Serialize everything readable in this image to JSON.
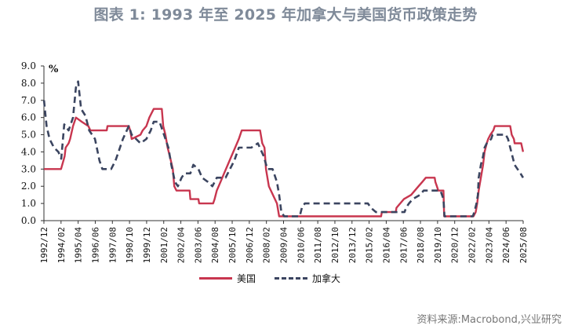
{
  "header": {
    "title": "图表 1:  1993 年至 2025 年加拿大与美国货币政策走势"
  },
  "legend": {
    "us_label": "美国",
    "ca_label": "加拿大"
  },
  "source": "资料来源:Macrobond,兴业研究",
  "colors": {
    "us": "#c8364f",
    "ca": "#3b4560",
    "axis": "#333333",
    "title": "#7f8a99"
  },
  "chart_data": {
    "type": "line",
    "title": "图表 1: 1993 年至 2025 年加拿大与美国货币政策走势",
    "xlabel": "",
    "ylabel": "%",
    "ylim": [
      0,
      9
    ],
    "yticks": [
      "0.0",
      "1.0",
      "2.0",
      "3.0",
      "4.0",
      "5.0",
      "6.0",
      "7.0",
      "8.0",
      "9.0"
    ],
    "xticks": [
      "1992/12",
      "1994/02",
      "1995/04",
      "1996/06",
      "1997/08",
      "1998/10",
      "1999/12",
      "2001/02",
      "2002/04",
      "2003/06",
      "2004/08",
      "2005/10",
      "2006/12",
      "2008/02",
      "2009/04",
      "2010/06",
      "2011/08",
      "2012/10",
      "2013/12",
      "2015/02",
      "2016/04",
      "2017/06",
      "2018/08",
      "2019/10",
      "2020/12",
      "2022/02",
      "2023/04",
      "2024/06",
      "2025/08"
    ],
    "xrange": [
      1992.917,
      2025.583
    ],
    "grid": false,
    "legend_position": "bottom",
    "series": [
      {
        "name": "美国",
        "style": "solid",
        "points": [
          [
            1992.92,
            3.0
          ],
          [
            1994.08,
            3.0
          ],
          [
            1994.25,
            3.5
          ],
          [
            1994.33,
            3.75
          ],
          [
            1994.4,
            4.25
          ],
          [
            1994.6,
            4.5
          ],
          [
            1994.7,
            4.75
          ],
          [
            1994.9,
            5.5
          ],
          [
            1995.1,
            6.0
          ],
          [
            1995.5,
            5.75
          ],
          [
            1995.95,
            5.5
          ],
          [
            1996.08,
            5.25
          ],
          [
            1997.2,
            5.25
          ],
          [
            1997.25,
            5.5
          ],
          [
            1998.7,
            5.5
          ],
          [
            1998.8,
            5.25
          ],
          [
            1998.9,
            4.75
          ],
          [
            1999.5,
            5.0
          ],
          [
            1999.65,
            5.25
          ],
          [
            1999.9,
            5.5
          ],
          [
            2000.1,
            6.0
          ],
          [
            2000.4,
            6.5
          ],
          [
            2000.95,
            6.5
          ],
          [
            2001.05,
            5.5
          ],
          [
            2001.2,
            5.0
          ],
          [
            2001.35,
            4.25
          ],
          [
            2001.5,
            3.75
          ],
          [
            2001.7,
            3.0
          ],
          [
            2001.8,
            2.0
          ],
          [
            2001.95,
            1.75
          ],
          [
            2002.85,
            1.75
          ],
          [
            2002.9,
            1.25
          ],
          [
            2003.45,
            1.25
          ],
          [
            2003.5,
            1.0
          ],
          [
            2004.45,
            1.0
          ],
          [
            2004.55,
            1.25
          ],
          [
            2004.7,
            1.75
          ],
          [
            2004.95,
            2.25
          ],
          [
            2005.2,
            2.75
          ],
          [
            2005.45,
            3.25
          ],
          [
            2005.7,
            3.75
          ],
          [
            2005.95,
            4.25
          ],
          [
            2006.2,
            4.75
          ],
          [
            2006.4,
            5.25
          ],
          [
            2007.65,
            5.25
          ],
          [
            2007.8,
            4.5
          ],
          [
            2007.95,
            4.25
          ],
          [
            2008.05,
            3.0
          ],
          [
            2008.25,
            2.0
          ],
          [
            2008.8,
            1.0
          ],
          [
            2008.95,
            0.25
          ],
          [
            2015.9,
            0.25
          ],
          [
            2015.95,
            0.5
          ],
          [
            2016.9,
            0.5
          ],
          [
            2016.95,
            0.75
          ],
          [
            2017.2,
            1.0
          ],
          [
            2017.45,
            1.25
          ],
          [
            2017.95,
            1.5
          ],
          [
            2018.2,
            1.75
          ],
          [
            2018.45,
            2.0
          ],
          [
            2018.7,
            2.25
          ],
          [
            2018.95,
            2.5
          ],
          [
            2019.55,
            2.5
          ],
          [
            2019.6,
            2.25
          ],
          [
            2019.7,
            2.0
          ],
          [
            2019.8,
            1.75
          ],
          [
            2020.15,
            1.75
          ],
          [
            2020.2,
            0.25
          ],
          [
            2022.2,
            0.25
          ],
          [
            2022.35,
            0.5
          ],
          [
            2022.45,
            1.0
          ],
          [
            2022.55,
            1.75
          ],
          [
            2022.7,
            2.5
          ],
          [
            2022.85,
            3.25
          ],
          [
            2022.95,
            4.0
          ],
          [
            2023.1,
            4.5
          ],
          [
            2023.2,
            4.75
          ],
          [
            2023.35,
            5.0
          ],
          [
            2023.55,
            5.25
          ],
          [
            2023.65,
            5.5
          ],
          [
            2024.7,
            5.5
          ],
          [
            2024.8,
            5.0
          ],
          [
            2024.95,
            4.75
          ],
          [
            2025.0,
            4.5
          ],
          [
            2025.45,
            4.5
          ],
          [
            2025.58,
            4.0
          ]
        ]
      },
      {
        "name": "加拿大",
        "style": "dashed",
        "points": [
          [
            1992.92,
            7.0
          ],
          [
            1993.1,
            5.5
          ],
          [
            1993.3,
            4.75
          ],
          [
            1993.6,
            4.25
          ],
          [
            1993.9,
            4.0
          ],
          [
            1994.1,
            3.6
          ],
          [
            1994.3,
            5.6
          ],
          [
            1994.6,
            5.25
          ],
          [
            1994.9,
            6.0
          ],
          [
            1995.1,
            7.75
          ],
          [
            1995.25,
            8.1
          ],
          [
            1995.45,
            6.5
          ],
          [
            1995.75,
            6.1
          ],
          [
            1996.0,
            5.25
          ],
          [
            1996.4,
            4.75
          ],
          [
            1996.7,
            3.5
          ],
          [
            1996.9,
            3.0
          ],
          [
            1997.5,
            3.0
          ],
          [
            1997.8,
            3.5
          ],
          [
            1998.0,
            4.0
          ],
          [
            1998.3,
            4.75
          ],
          [
            1998.7,
            5.5
          ],
          [
            1998.9,
            5.0
          ],
          [
            1999.2,
            4.75
          ],
          [
            1999.5,
            4.5
          ],
          [
            1999.9,
            4.75
          ],
          [
            2000.2,
            5.25
          ],
          [
            2000.4,
            5.75
          ],
          [
            2000.8,
            5.75
          ],
          [
            2001.1,
            5.0
          ],
          [
            2001.4,
            4.25
          ],
          [
            2001.6,
            3.25
          ],
          [
            2001.85,
            2.25
          ],
          [
            2002.05,
            2.0
          ],
          [
            2002.3,
            2.5
          ],
          [
            2002.5,
            2.75
          ],
          [
            2002.9,
            2.75
          ],
          [
            2003.1,
            3.25
          ],
          [
            2003.45,
            3.0
          ],
          [
            2003.7,
            2.5
          ],
          [
            2004.1,
            2.25
          ],
          [
            2004.4,
            2.0
          ],
          [
            2004.7,
            2.5
          ],
          [
            2005.3,
            2.5
          ],
          [
            2005.6,
            3.0
          ],
          [
            2005.9,
            3.5
          ],
          [
            2006.2,
            4.25
          ],
          [
            2007.05,
            4.25
          ],
          [
            2007.5,
            4.5
          ],
          [
            2007.9,
            3.75
          ],
          [
            2008.15,
            3.0
          ],
          [
            2008.5,
            3.0
          ],
          [
            2008.8,
            2.25
          ],
          [
            2008.95,
            1.5
          ],
          [
            2009.1,
            0.5
          ],
          [
            2009.3,
            0.25
          ],
          [
            2010.35,
            0.25
          ],
          [
            2010.5,
            0.75
          ],
          [
            2010.7,
            1.0
          ],
          [
            2015.0,
            1.0
          ],
          [
            2015.2,
            0.75
          ],
          [
            2015.55,
            0.5
          ],
          [
            2017.5,
            0.5
          ],
          [
            2017.6,
            0.75
          ],
          [
            2017.8,
            1.0
          ],
          [
            2018.05,
            1.25
          ],
          [
            2018.55,
            1.5
          ],
          [
            2018.8,
            1.75
          ],
          [
            2019.95,
            1.75
          ],
          [
            2020.15,
            1.25
          ],
          [
            2020.22,
            0.25
          ],
          [
            2022.15,
            0.25
          ],
          [
            2022.25,
            0.5
          ],
          [
            2022.4,
            1.0
          ],
          [
            2022.5,
            1.5
          ],
          [
            2022.55,
            2.5
          ],
          [
            2022.7,
            3.25
          ],
          [
            2022.85,
            3.75
          ],
          [
            2022.95,
            4.25
          ],
          [
            2023.1,
            4.5
          ],
          [
            2023.4,
            4.75
          ],
          [
            2023.5,
            5.0
          ],
          [
            2024.4,
            5.0
          ],
          [
            2024.55,
            4.75
          ],
          [
            2024.7,
            4.25
          ],
          [
            2024.85,
            3.75
          ],
          [
            2025.0,
            3.25
          ],
          [
            2025.2,
            3.0
          ],
          [
            2025.4,
            2.75
          ],
          [
            2025.58,
            2.5
          ]
        ]
      }
    ]
  }
}
